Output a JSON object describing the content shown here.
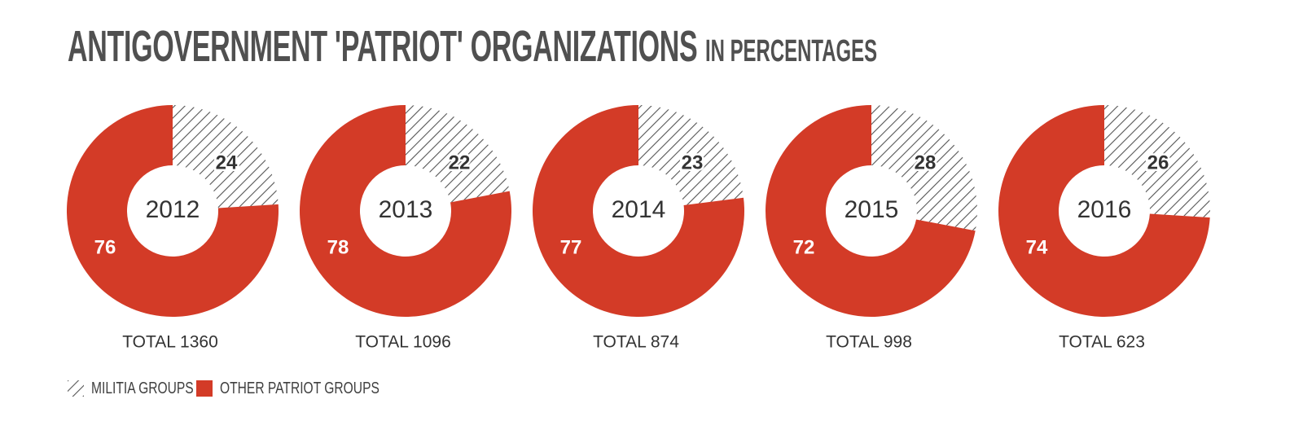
{
  "title": {
    "main": "ANTIGOVERNMENT 'PATRIOT' ORGANIZATIONS",
    "sub": "IN PERCENTAGES"
  },
  "colors": {
    "other": "#d33b27",
    "militia_stroke": "#555555",
    "text_dark": "#333333",
    "text_white": "#ffffff"
  },
  "legend": {
    "position": "bottom-left",
    "items": [
      {
        "key": "militia",
        "label": "MILITIA GROUPS",
        "pattern": "hatched"
      },
      {
        "key": "other",
        "label": "OTHER PATRIOT GROUPS",
        "pattern": "solid"
      }
    ]
  },
  "chart_data": [
    {
      "type": "pie",
      "year": "2012",
      "total_label": "TOTAL 1360",
      "slices": [
        {
          "name": "MILITIA GROUPS",
          "value": 24
        },
        {
          "name": "OTHER PATRIOT GROUPS",
          "value": 76
        }
      ]
    },
    {
      "type": "pie",
      "year": "2013",
      "total_label": "TOTAL 1096",
      "slices": [
        {
          "name": "MILITIA GROUPS",
          "value": 22
        },
        {
          "name": "OTHER PATRIOT GROUPS",
          "value": 78
        }
      ]
    },
    {
      "type": "pie",
      "year": "2014",
      "total_label": "TOTAL 874",
      "slices": [
        {
          "name": "MILITIA GROUPS",
          "value": 23
        },
        {
          "name": "OTHER PATRIOT GROUPS",
          "value": 77
        }
      ]
    },
    {
      "type": "pie",
      "year": "2015",
      "total_label": "TOTAL 998",
      "slices": [
        {
          "name": "MILITIA GROUPS",
          "value": 28
        },
        {
          "name": "OTHER PATRIOT GROUPS",
          "value": 72
        }
      ]
    },
    {
      "type": "pie",
      "year": "2016",
      "total_label": "TOTAL 623",
      "slices": [
        {
          "name": "MILITIA GROUPS",
          "value": 26
        },
        {
          "name": "OTHER PATRIOT GROUPS",
          "value": 74
        }
      ]
    }
  ]
}
